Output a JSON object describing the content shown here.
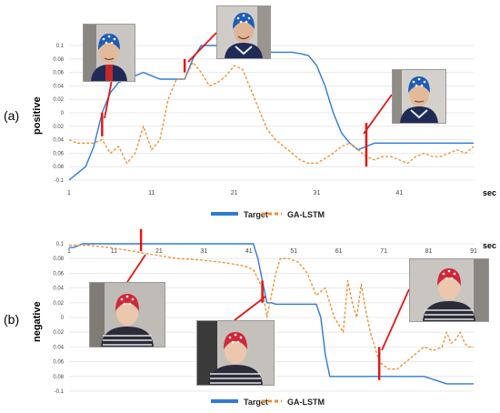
{
  "panels": [
    {
      "id": "a",
      "panel_label": "(a)",
      "side_label": "positive",
      "x_unit": "sec",
      "legend": [
        {
          "label": "Target",
          "color": "#2e7bd6",
          "style": "solid"
        },
        {
          "label": "GA-LSTM",
          "color": "#f08c2a",
          "style": "dashed"
        }
      ],
      "photo_icon": "face-photo-blue-cap-man",
      "photos_count_shown": 3
    },
    {
      "id": "b",
      "panel_label": "(b)",
      "side_label": "negative",
      "x_unit": "sec",
      "legend": [
        {
          "label": "Target",
          "color": "#2e7bd6",
          "style": "solid"
        },
        {
          "label": "GA-LSTM",
          "color": "#f08c2a",
          "style": "dashed"
        }
      ],
      "photo_icon": "face-photo-red-cap-woman",
      "photos_count_shown": 3
    }
  ],
  "chart_data": [
    {
      "type": "line",
      "panel": "a",
      "xlabel": "sec",
      "ylabel": "",
      "x_ticks": [
        1,
        11,
        21,
        31,
        41
      ],
      "y_tick_labels": [
        "0.1",
        "0.08",
        "0.06",
        "0.04",
        "0.02",
        "0",
        "0.02",
        "0.04",
        "0.06",
        "0.08",
        "-0.1"
      ],
      "ylim": [
        -0.1,
        0.1
      ],
      "x_range": [
        1,
        50
      ],
      "grid": true,
      "legend_position": "bottom",
      "series": [
        {
          "name": "Target",
          "color": "#2e7bd6",
          "x": [
            1,
            2,
            3,
            4,
            5,
            6,
            7,
            8,
            9,
            10,
            11,
            12,
            13,
            14,
            15,
            16,
            17,
            18,
            19,
            20,
            21,
            22,
            23,
            24,
            25,
            26,
            27,
            28,
            29,
            30,
            31,
            32,
            33,
            34,
            35,
            36,
            37,
            38,
            39,
            40,
            41,
            42,
            43,
            44,
            45,
            46,
            47,
            48,
            49,
            50
          ],
          "values": [
            -0.1,
            -0.09,
            -0.08,
            -0.05,
            0.0,
            0.03,
            0.045,
            0.05,
            0.055,
            0.06,
            0.055,
            0.05,
            0.05,
            0.05,
            0.05,
            0.08,
            0.1,
            0.1,
            0.1,
            0.095,
            0.09,
            0.09,
            0.09,
            0.09,
            0.09,
            0.09,
            0.09,
            0.09,
            0.088,
            0.085,
            0.07,
            0.04,
            0.0,
            -0.03,
            -0.045,
            -0.055,
            -0.05,
            -0.045,
            -0.045,
            -0.045,
            -0.045,
            -0.045,
            -0.045,
            -0.045,
            -0.045,
            -0.045,
            -0.045,
            -0.045,
            -0.045,
            -0.045
          ]
        },
        {
          "name": "GA-LSTM",
          "color": "#f08c2a",
          "x": [
            1,
            2,
            3,
            4,
            5,
            6,
            7,
            8,
            9,
            10,
            11,
            12,
            13,
            14,
            15,
            16,
            17,
            18,
            19,
            20,
            21,
            22,
            23,
            24,
            25,
            26,
            27,
            28,
            29,
            30,
            31,
            32,
            33,
            34,
            35,
            36,
            37,
            38,
            39,
            40,
            41,
            42,
            43,
            44,
            45,
            46,
            47,
            48,
            49,
            50
          ],
          "values": [
            -0.04,
            -0.045,
            -0.045,
            -0.045,
            -0.04,
            -0.06,
            -0.05,
            -0.075,
            -0.06,
            -0.02,
            -0.055,
            -0.04,
            0.02,
            0.05,
            0.05,
            0.075,
            0.06,
            0.04,
            0.045,
            0.055,
            0.07,
            0.065,
            0.035,
            0.005,
            -0.025,
            -0.04,
            -0.05,
            -0.06,
            -0.07,
            -0.075,
            -0.075,
            -0.068,
            -0.06,
            -0.05,
            -0.045,
            -0.055,
            -0.065,
            -0.07,
            -0.065,
            -0.065,
            -0.07,
            -0.075,
            -0.065,
            -0.06,
            -0.065,
            -0.065,
            -0.06,
            -0.055,
            -0.06,
            -0.05
          ]
        }
      ],
      "markers": [
        {
          "x": 5,
          "y_from": -0.035,
          "y_to": 0.0
        },
        {
          "x": 15,
          "y_from": 0.06,
          "y_to": 0.08
        },
        {
          "x": 37,
          "y_from": -0.08,
          "y_to": -0.015
        }
      ]
    },
    {
      "type": "line",
      "panel": "b",
      "xlabel": "sec",
      "ylabel": "",
      "x_ticks": [
        1,
        11,
        21,
        31,
        41,
        51,
        61,
        71,
        81,
        91
      ],
      "y_tick_labels": [
        "0.1",
        "0.08",
        "0.06",
        "0.04",
        "0.02",
        "0",
        "0.02",
        "0.04",
        "0.06",
        "0.08",
        "-0.1"
      ],
      "ylim": [
        -0.1,
        0.1
      ],
      "x_range": [
        1,
        91
      ],
      "grid": true,
      "legend_position": "bottom",
      "series": [
        {
          "name": "Target",
          "color": "#2e7bd6",
          "x": [
            1,
            2,
            4,
            6,
            10,
            20,
            30,
            40,
            42,
            43,
            44,
            45,
            46,
            47,
            50,
            55,
            56,
            57,
            58,
            59,
            60,
            65,
            70,
            75,
            80,
            85,
            90,
            91
          ],
          "values": [
            0.095,
            0.095,
            0.1,
            0.1,
            0.1,
            0.1,
            0.1,
            0.1,
            0.1,
            0.08,
            0.05,
            0.02,
            0.02,
            0.018,
            0.018,
            0.018,
            0.018,
            0.0,
            -0.05,
            -0.08,
            -0.08,
            -0.08,
            -0.08,
            -0.08,
            -0.08,
            -0.09,
            -0.09,
            -0.09
          ]
        },
        {
          "name": "GA-LSTM",
          "color": "#f08c2a",
          "x": [
            1,
            5,
            10,
            15,
            20,
            25,
            30,
            35,
            40,
            42,
            44,
            45,
            46,
            47,
            48,
            50,
            52,
            54,
            56,
            58,
            60,
            62,
            63,
            64,
            65,
            66,
            67,
            68,
            70,
            72,
            74,
            76,
            78,
            80,
            82,
            84,
            85,
            86,
            87,
            88,
            89,
            90,
            91
          ],
          "values": [
            0.098,
            0.098,
            0.095,
            0.09,
            0.085,
            0.08,
            0.078,
            0.075,
            0.07,
            0.065,
            0.04,
            0.0,
            0.03,
            0.06,
            0.08,
            0.08,
            0.075,
            0.06,
            0.03,
            0.04,
            0.0,
            -0.02,
            0.05,
            0.02,
            0.0,
            0.045,
            0.01,
            -0.02,
            -0.06,
            -0.07,
            -0.07,
            -0.06,
            -0.05,
            -0.04,
            -0.045,
            -0.04,
            -0.02,
            -0.035,
            -0.03,
            -0.02,
            -0.035,
            -0.04,
            -0.04
          ]
        }
      ],
      "markers": [
        {
          "x": 17,
          "y_from": 0.09,
          "y_to": 0.12
        },
        {
          "x": 44,
          "y_from": 0.02,
          "y_to": 0.05
        },
        {
          "x": 70,
          "y_from": -0.085,
          "y_to": -0.04
        }
      ]
    }
  ]
}
